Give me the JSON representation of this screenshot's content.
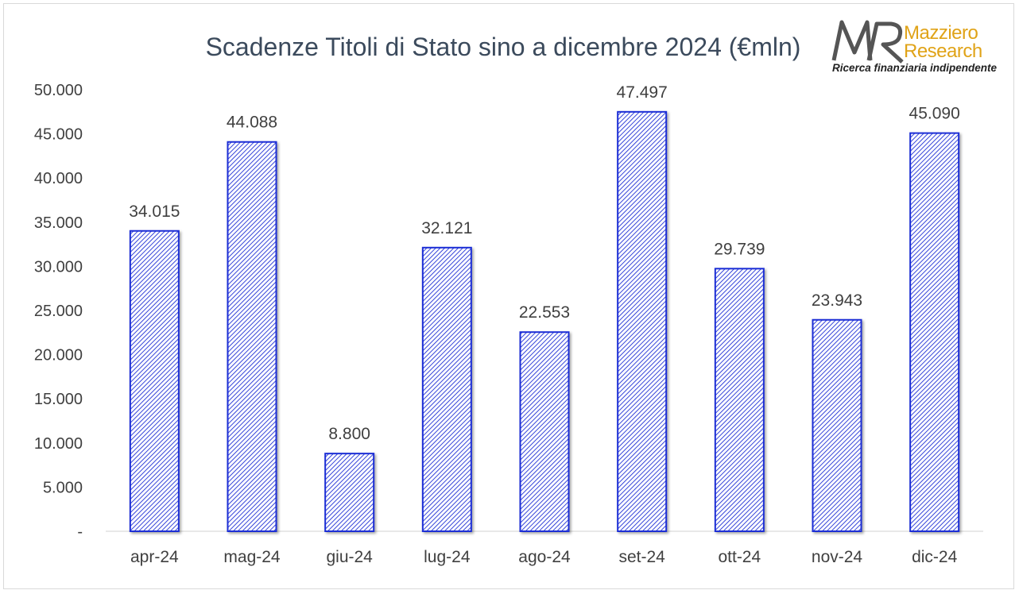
{
  "chart_data": {
    "type": "bar",
    "title": "Scadenze Titoli di Stato sino a dicembre 2024 (€mln)",
    "xlabel": "",
    "ylabel": "",
    "categories": [
      "apr-24",
      "mag-24",
      "giu-24",
      "lug-24",
      "ago-24",
      "set-24",
      "ott-24",
      "nov-24",
      "dic-24"
    ],
    "values": [
      34015,
      44088,
      8800,
      32121,
      22553,
      47497,
      29739,
      23943,
      45090
    ],
    "data_labels": [
      "34.015",
      "44.088",
      "8.800",
      "32.121",
      "22.553",
      "47.497",
      "29.739",
      "23.943",
      "45.090"
    ],
    "ylim": [
      0,
      50000
    ],
    "yticks": [
      0,
      5000,
      10000,
      15000,
      20000,
      25000,
      30000,
      35000,
      40000,
      45000,
      50000
    ],
    "ytick_labels": [
      "-",
      "5.000",
      "10.000",
      "15.000",
      "20.000",
      "25.000",
      "30.000",
      "35.000",
      "40.000",
      "45.000",
      "50.000"
    ],
    "grid": false,
    "bar_color": "#1f2fd6",
    "bar_pattern": "diagonal-hatch"
  },
  "logo": {
    "monogram": "MR",
    "name_line1": "Mazziero",
    "name_line2": "Research",
    "tagline": "Ricerca finanziaria indipendente",
    "colors": {
      "monogram": "#555555",
      "name": "#e0a318",
      "tagline": "#222222"
    }
  }
}
